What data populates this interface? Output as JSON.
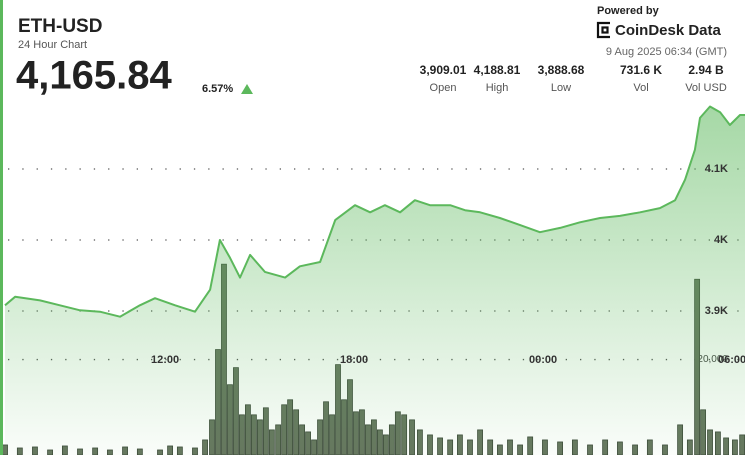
{
  "chart_data": {
    "type": "line",
    "title": "ETH-USD",
    "subtitle": "24 Hour Chart",
    "price": "4,165.84",
    "change": "6.57%",
    "powered_by": "Powered by",
    "brand": "CoinDesk Data",
    "timestamp": "9 Aug 2025 06:34 (GMT)",
    "stats": [
      {
        "value": "3,909.01",
        "label": "Open"
      },
      {
        "value": "4,188.81",
        "label": "High"
      },
      {
        "value": "3,888.68",
        "label": "Low"
      },
      {
        "value": "731.6 K",
        "label": "Vol"
      },
      {
        "value": "2.94 B",
        "label": "Vol USD"
      }
    ],
    "grid": true,
    "xlim": [
      6.76,
      30.41
    ],
    "xticks": [
      {
        "value": 12,
        "label": "12:00"
      },
      {
        "value": 18,
        "label": "18:00"
      },
      {
        "value": 24,
        "label": "00:00"
      },
      {
        "value": 30,
        "label": "06:00"
      }
    ],
    "ylim": [
      3700,
      4200
    ],
    "yticks": [
      {
        "value": 3900,
        "label": "3.9K"
      },
      {
        "value": 4000,
        "label": "4K"
      },
      {
        "value": 4100,
        "label": "4.1K"
      }
    ],
    "y2lim": [
      0,
      76000
    ],
    "y2ticks": [
      {
        "value": 20000,
        "label": "20,000"
      }
    ],
    "series": [
      {
        "color": "#5cb85c",
        "x": [
          6.92,
          7.24,
          8.03,
          8.66,
          9.3,
          9.93,
          10.57,
          11.2,
          11.68,
          12.32,
          12.95,
          13.43,
          13.74,
          14.06,
          14.38,
          14.7,
          15.17,
          15.81,
          16.28,
          16.92,
          17.4,
          18.03,
          18.51,
          18.98,
          19.46,
          19.93,
          20.41,
          21.05,
          21.52,
          22.0,
          22.63,
          23.27,
          23.9,
          24.54,
          25.17,
          25.81,
          26.44,
          27.08,
          27.71,
          28.19,
          28.51,
          28.82,
          28.98,
          29.3,
          29.62,
          29.93,
          30.25
        ],
        "values": [
          3908,
          3920,
          3915,
          3908,
          3901,
          3899,
          3892,
          3908,
          3918,
          3908,
          3899,
          3930,
          4000,
          3975,
          3947,
          3979,
          3955,
          3947,
          3963,
          3969,
          4028,
          4049,
          4039,
          4049,
          4039,
          4056,
          4049,
          4049,
          4042,
          4039,
          4031,
          4021,
          4011,
          4017,
          4025,
          4031,
          4034,
          4039,
          4045,
          4056,
          4085,
          4127,
          4172,
          4188,
          4180,
          4162,
          4176
        ]
      },
      {
        "color": "#66765f",
        "axis": "y2",
        "x": [
          6.92,
          7.39,
          7.87,
          8.35,
          8.82,
          9.3,
          9.78,
          10.25,
          10.73,
          11.2,
          11.84,
          12.16,
          12.47,
          12.95,
          13.27,
          13.49,
          13.68,
          13.87,
          14.06,
          14.25,
          14.44,
          14.63,
          14.82,
          15.01,
          15.2,
          15.39,
          15.59,
          15.78,
          15.97,
          16.16,
          16.35,
          16.54,
          16.73,
          16.92,
          17.11,
          17.3,
          17.49,
          17.68,
          17.87,
          18.06,
          18.25,
          18.44,
          18.63,
          18.82,
          19.01,
          19.2,
          19.39,
          19.59,
          19.84,
          20.09,
          20.41,
          20.73,
          21.05,
          21.36,
          21.68,
          22.0,
          22.32,
          22.63,
          22.95,
          23.27,
          23.59,
          24.06,
          24.54,
          25.01,
          25.49,
          25.97,
          26.44,
          26.92,
          27.39,
          27.87,
          28.35,
          28.66,
          28.89,
          29.08,
          29.3,
          29.55,
          29.81,
          30.09,
          30.32
        ],
        "values": [
          1720,
          1075,
          1290,
          645,
          1505,
          860,
          1075,
          645,
          1290,
          860,
          645,
          1505,
          1290,
          1075,
          2795,
          7095,
          22145,
          40420,
          14620,
          18275,
          8170,
          10320,
          8170,
          7095,
          9675,
          4945,
          6020,
          10320,
          11395,
          9245,
          6020,
          4515,
          2795,
          7095,
          10965,
          8170,
          18920,
          11395,
          15695,
          8815,
          9245,
          6020,
          7095,
          4945,
          3870,
          6020,
          8815,
          8170,
          7095,
          4945,
          3870,
          3225,
          2795,
          3870,
          2795,
          4945,
          2795,
          1720,
          2795,
          1720,
          3440,
          2795,
          2365,
          2795,
          1720,
          2795,
          2365,
          1720,
          2795,
          1720,
          6020,
          2795,
          37195,
          9245,
          4945,
          4515,
          3225,
          2795,
          3870
        ]
      }
    ]
  }
}
